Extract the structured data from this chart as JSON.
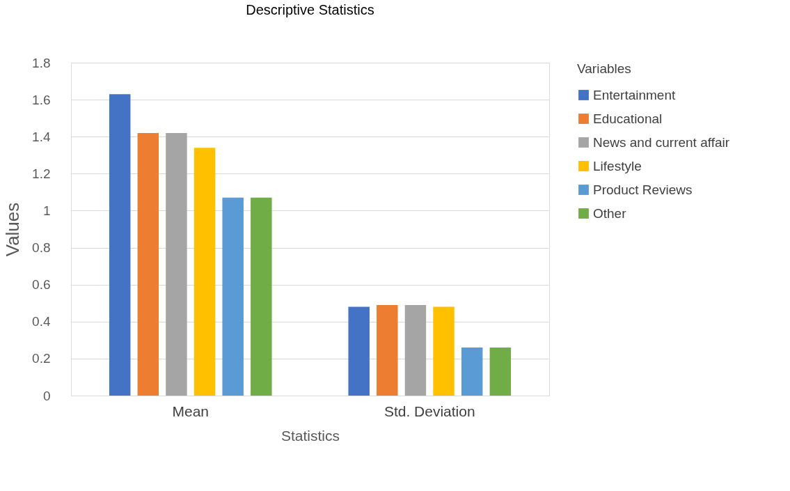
{
  "chart_data": {
    "type": "bar",
    "title": "Descriptive Statistics",
    "xlabel": "Statistics",
    "ylabel": "Values",
    "legend_title": "Variables",
    "categories": [
      "Mean",
      "Std. Deviation"
    ],
    "series": [
      {
        "name": "Entertainment",
        "color": "#4472c4",
        "values": [
          1.63,
          0.48
        ]
      },
      {
        "name": "Educational",
        "color": "#ed7d31",
        "values": [
          1.42,
          0.49
        ]
      },
      {
        "name": "News and current affair",
        "color": "#a5a5a5",
        "values": [
          1.42,
          0.49
        ]
      },
      {
        "name": "Lifestyle",
        "color": "#ffc000",
        "values": [
          1.34,
          0.48
        ]
      },
      {
        "name": "Product Reviews",
        "color": "#5b9bd5",
        "values": [
          1.07,
          0.26
        ]
      },
      {
        "name": "Other",
        "color": "#70ad47",
        "values": [
          1.07,
          0.26
        ]
      }
    ],
    "ylim": [
      0,
      1.8
    ],
    "yticks": [
      0,
      {
        "value": 0.2,
        "label": "0.2"
      },
      {
        "value": 0.4,
        "label": "0.4"
      },
      {
        "value": 0.6,
        "label": "0.6"
      },
      {
        "value": 0.8,
        "label": "0.8"
      },
      1,
      {
        "value": 1.2,
        "label": "1.2"
      },
      {
        "value": 1.4,
        "label": "1.4"
      },
      {
        "value": 1.6,
        "label": "1.6"
      },
      {
        "value": 1.8,
        "label": "1.8"
      }
    ],
    "grid": "y",
    "legend": "right"
  }
}
